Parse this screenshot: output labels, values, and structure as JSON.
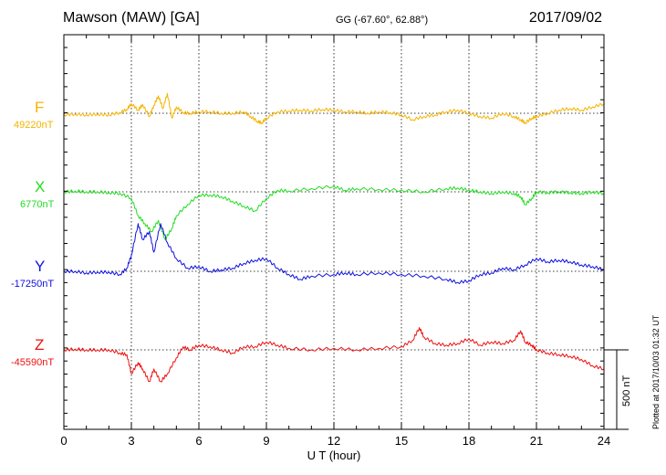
{
  "header": {
    "station": "Mawson (MAW)  [GA]",
    "coords": "GG (-67.60°,  62.88°)",
    "date": "2017/09/02"
  },
  "components": [
    {
      "name": "F",
      "baseline": "49220nT",
      "color": "#f5b400"
    },
    {
      "name": "X",
      "baseline": "6770nT",
      "color": "#22dd22"
    },
    {
      "name": "Y",
      "baseline": "-17250nT",
      "color": "#1010e0"
    },
    {
      "name": "Z",
      "baseline": "-45590nT",
      "color": "#ee1111"
    }
  ],
  "scale_label": "500 nT",
  "plotted_note": "Plotted at 2017/10/03 01:32 UT",
  "chart_data": {
    "type": "line",
    "xlabel": "U T (hour)",
    "xlim": [
      0,
      24
    ],
    "x_ticks": [
      0,
      3,
      6,
      9,
      12,
      15,
      18,
      21,
      24
    ],
    "grid": true,
    "scale_bar_nT": 500,
    "series": [
      {
        "name": "F",
        "baseline_nT": 49220,
        "x": [
          0,
          0.5,
          1,
          1.5,
          2,
          2.5,
          2.8,
          3,
          3.3,
          3.5,
          3.8,
          4,
          4.2,
          4.4,
          4.6,
          4.8,
          5,
          5.3,
          5.6,
          6,
          6.5,
          7,
          7.5,
          8,
          8.3,
          8.6,
          8.8,
          9,
          9.5,
          10,
          10.5,
          11,
          11.5,
          12,
          12.5,
          13,
          13.5,
          14,
          14.5,
          15,
          15.5,
          16,
          16.5,
          17,
          17.5,
          18,
          18.5,
          19,
          19.5,
          20,
          20.3,
          20.5,
          20.8,
          21,
          21.5,
          22,
          22.5,
          23,
          23.5,
          24
        ],
        "y": [
          -10,
          -5,
          -10,
          -5,
          -10,
          5,
          25,
          60,
          20,
          55,
          -20,
          50,
          110,
          30,
          125,
          -30,
          40,
          5,
          0,
          10,
          10,
          0,
          0,
          10,
          -20,
          -50,
          -60,
          -30,
          10,
          15,
          20,
          15,
          25,
          20,
          10,
          10,
          0,
          10,
          5,
          -10,
          -40,
          -20,
          -10,
          10,
          20,
          0,
          -20,
          -30,
          0,
          -20,
          -40,
          -60,
          -30,
          -20,
          0,
          20,
          30,
          20,
          40,
          60
        ]
      },
      {
        "name": "X",
        "baseline_nT": 6770,
        "x": [
          0,
          0.5,
          1,
          1.5,
          2,
          2.5,
          3,
          3.3,
          3.6,
          3.9,
          4.2,
          4.5,
          4.8,
          5,
          5.5,
          6,
          6.5,
          7,
          7.5,
          8,
          8.5,
          9,
          9.5,
          10,
          11,
          12,
          12.5,
          13,
          14,
          15,
          16,
          17,
          17.5,
          18,
          18.5,
          19,
          19.5,
          20,
          20.3,
          20.5,
          20.8,
          21,
          21.5,
          22,
          22.5,
          23,
          23.5,
          24
        ],
        "y": [
          0,
          5,
          0,
          0,
          -5,
          -10,
          -40,
          -150,
          -200,
          -250,
          -180,
          -300,
          -230,
          -150,
          -80,
          -20,
          -20,
          -30,
          -60,
          -90,
          -120,
          -40,
          10,
          5,
          20,
          35,
          10,
          20,
          15,
          10,
          0,
          20,
          25,
          10,
          0,
          -10,
          0,
          -10,
          -30,
          -80,
          -40,
          0,
          -5,
          0,
          -5,
          -10,
          0,
          -10
        ]
      },
      {
        "name": "Y",
        "baseline_nT": -17250,
        "x": [
          0,
          0.5,
          1,
          1.5,
          2,
          2.5,
          2.8,
          3,
          3.3,
          3.5,
          3.8,
          4,
          4.3,
          4.6,
          5,
          5.5,
          6,
          6.5,
          7,
          7.5,
          8,
          8.5,
          9,
          9.5,
          10,
          10.5,
          11,
          12,
          12.5,
          13,
          14,
          15,
          16,
          17,
          17.5,
          18,
          18.5,
          19,
          19.5,
          20,
          20.5,
          21,
          21.5,
          22,
          22.5,
          23,
          23.5,
          24
        ],
        "y": [
          0,
          0,
          -10,
          -5,
          -5,
          -20,
          20,
          100,
          300,
          200,
          250,
          120,
          300,
          180,
          80,
          20,
          30,
          0,
          10,
          20,
          50,
          70,
          80,
          20,
          -20,
          -50,
          -30,
          -20,
          -10,
          -20,
          -10,
          -20,
          -30,
          -50,
          -70,
          -60,
          -20,
          -10,
          20,
          10,
          40,
          80,
          60,
          70,
          60,
          40,
          30,
          10
        ]
      },
      {
        "name": "Z",
        "baseline_nT": -45590,
        "x": [
          0,
          0.5,
          1,
          1.5,
          2,
          2.5,
          2.8,
          3,
          3.3,
          3.5,
          3.8,
          4,
          4.3,
          4.6,
          5,
          5.3,
          5.6,
          6,
          6.5,
          7,
          7.5,
          8,
          8.5,
          9,
          9.5,
          10,
          11,
          12,
          13,
          14,
          15,
          15.5,
          15.8,
          16,
          16.5,
          17,
          17.5,
          18,
          18.5,
          19,
          19.5,
          20,
          20.3,
          20.5,
          20.8,
          21,
          21.5,
          22,
          22.5,
          23,
          23.5,
          24
        ],
        "y": [
          0,
          5,
          0,
          0,
          0,
          -20,
          -30,
          -150,
          -80,
          -120,
          -200,
          -120,
          -200,
          -150,
          -50,
          20,
          0,
          30,
          20,
          0,
          -20,
          20,
          20,
          50,
          30,
          10,
          0,
          10,
          0,
          10,
          20,
          60,
          140,
          80,
          40,
          30,
          40,
          70,
          30,
          50,
          40,
          60,
          120,
          50,
          30,
          0,
          -20,
          -30,
          -40,
          -60,
          -100,
          -120
        ]
      }
    ]
  }
}
